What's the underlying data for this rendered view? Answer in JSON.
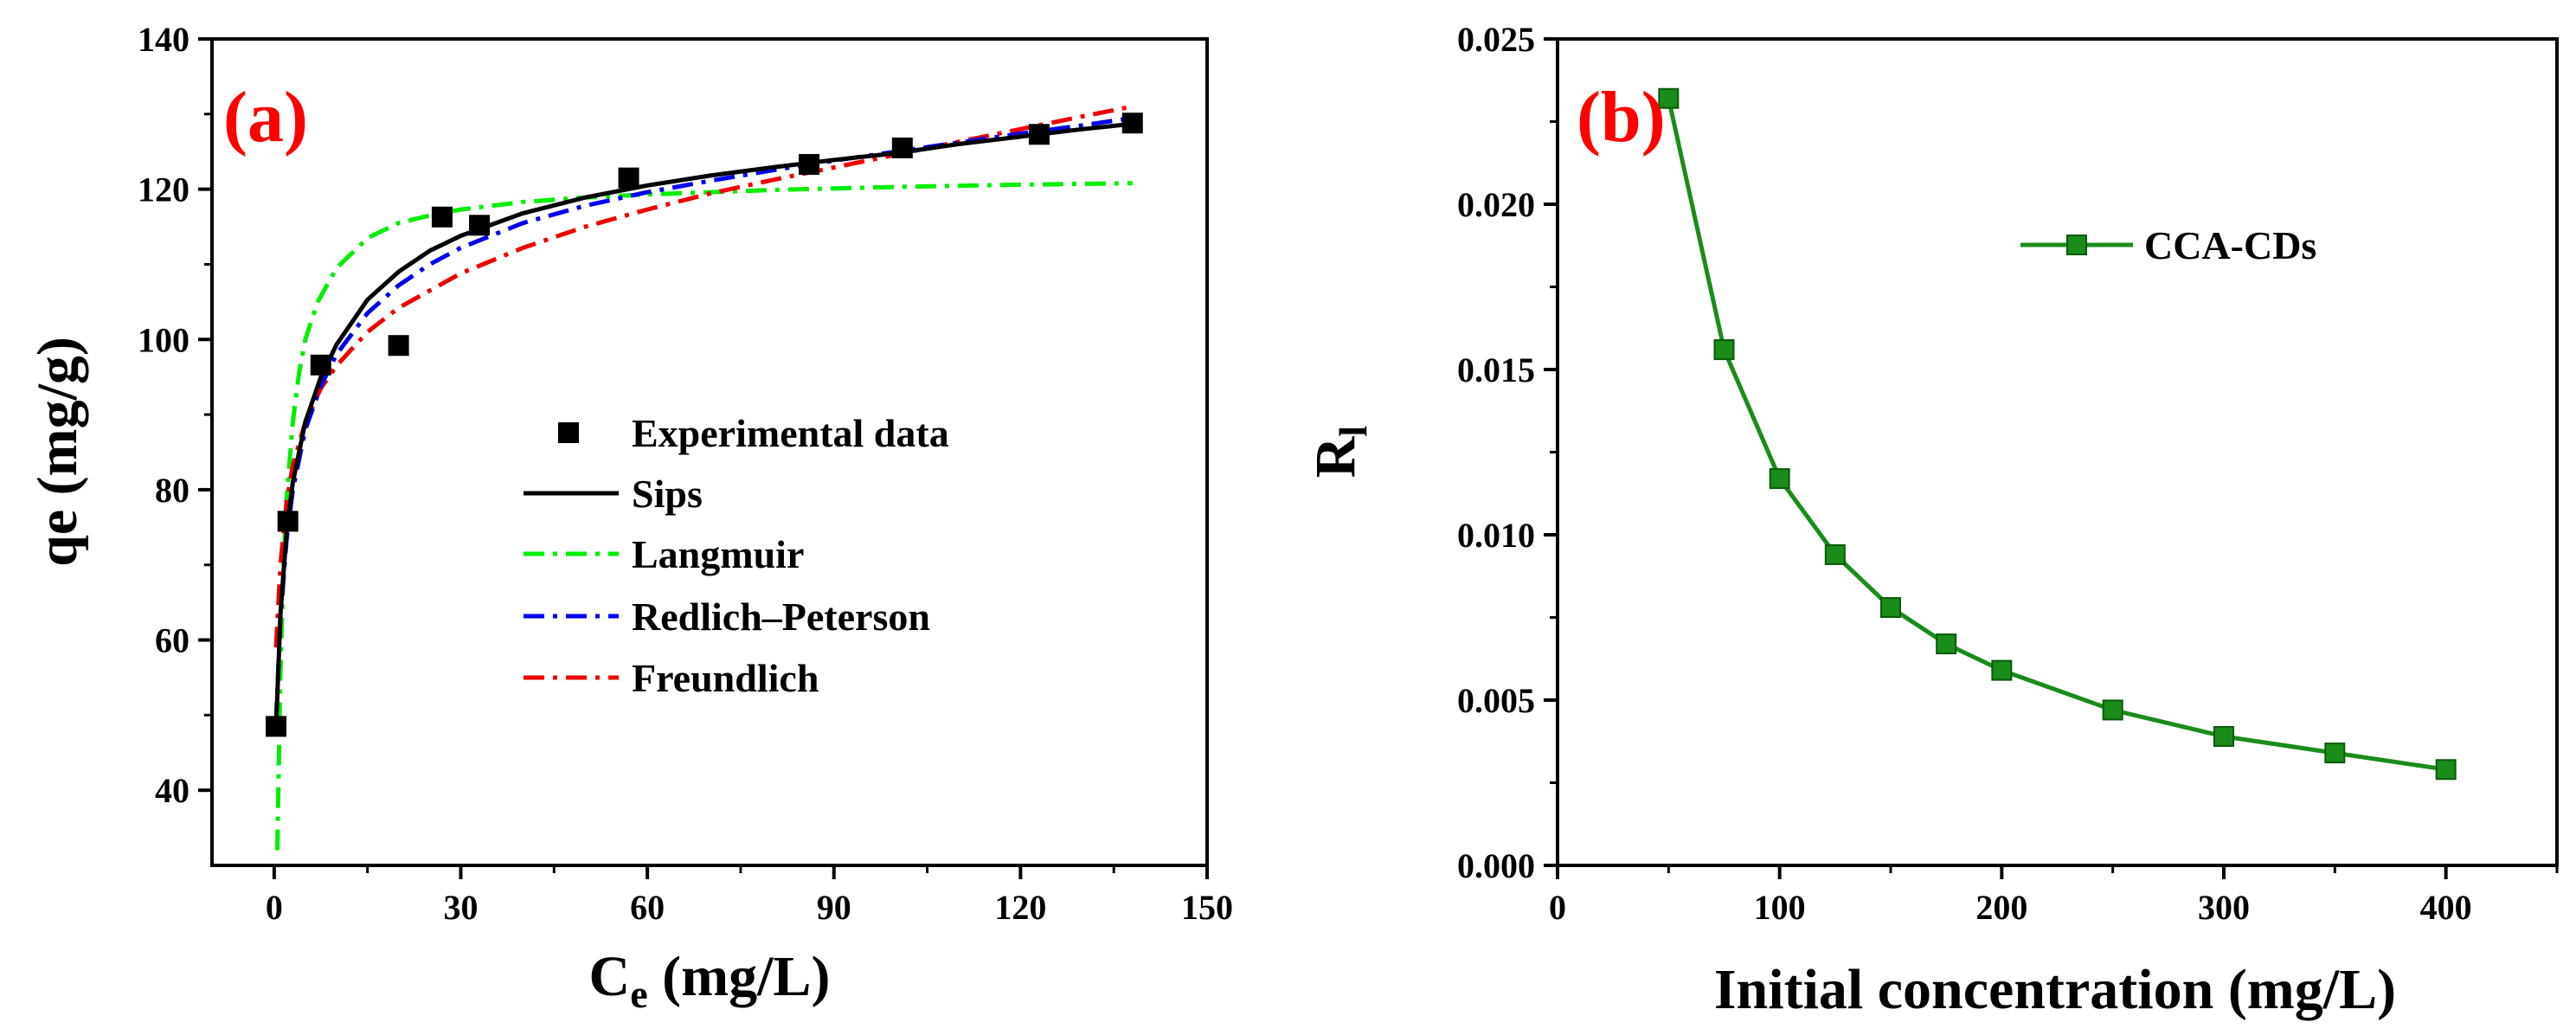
{
  "chart_data": [
    {
      "panel": "a",
      "type": "scatter",
      "panel_label": "(a)",
      "panel_label_color": "#ff0000",
      "xlabel_main": "C",
      "xlabel_sub": "e",
      "xlabel_rest": " (mg/L)",
      "ylabel": "qe (mg/g)",
      "xlim": [
        -10,
        150
      ],
      "ylim": [
        30,
        140
      ],
      "xticks": [
        0,
        30,
        60,
        90,
        120,
        150
      ],
      "yticks": [
        40,
        60,
        80,
        100,
        120,
        140
      ],
      "legend_position": "center",
      "series": [
        {
          "name": "Experimental data",
          "kind": "points",
          "color": "#000000",
          "x": [
            0.3,
            2.2,
            7.5,
            20.0,
            27.0,
            33.0,
            57.0,
            86.0,
            101.0,
            123.0,
            138.0
          ],
          "y": [
            48.5,
            75.8,
            96.6,
            99.2,
            116.3,
            115.2,
            121.5,
            123.3,
            125.5,
            127.3,
            128.8
          ]
        },
        {
          "name": "Sips",
          "kind": "line",
          "color": "#000000",
          "dash": "none",
          "x": [
            0.3,
            1,
            2,
            3,
            5,
            7.5,
            10,
            15,
            20,
            25,
            30,
            40,
            50,
            60,
            70,
            80,
            90,
            100,
            110,
            120,
            130,
            138
          ],
          "y": [
            48.0,
            63.5,
            74.5,
            81.0,
            89.0,
            95.0,
            99.3,
            105.3,
            109.0,
            111.8,
            113.8,
            116.8,
            118.9,
            120.5,
            121.8,
            122.9,
            123.9,
            124.8,
            126.0,
            127.0,
            128.0,
            128.7
          ]
        },
        {
          "name": "Langmuir",
          "kind": "line",
          "color": "#00ee00",
          "dash": "24 10 5 10",
          "x": [
            0.5,
            0.8,
            1,
            1.5,
            2,
            3,
            4,
            5,
            7,
            10,
            15,
            20,
            25,
            30,
            40,
            50,
            60,
            80,
            100,
            120,
            138
          ],
          "y": [
            32.0,
            46.0,
            56.0,
            70.0,
            79.0,
            89.0,
            95.5,
            100.0,
            105.0,
            109.5,
            113.5,
            115.5,
            116.5,
            117.3,
            118.3,
            118.9,
            119.3,
            119.9,
            120.3,
            120.6,
            120.8
          ]
        },
        {
          "name": "Redlich–Peterson",
          "kind": "line",
          "color": "#0000ee",
          "dash": "24 10 5 10",
          "x": [
            0.3,
            1,
            2,
            3,
            5,
            7.5,
            10,
            15,
            20,
            25,
            30,
            40,
            50,
            60,
            70,
            80,
            90,
            100,
            110,
            120,
            130,
            138
          ],
          "y": [
            49.0,
            63.0,
            73.5,
            80.0,
            88.0,
            93.8,
            98.0,
            103.5,
            107.2,
            110.0,
            112.2,
            115.5,
            117.8,
            119.6,
            121.1,
            122.5,
            123.8,
            125.0,
            126.2,
            127.4,
            128.5,
            129.5
          ]
        },
        {
          "name": "Freundlich",
          "kind": "line",
          "color": "#ee0000",
          "dash": "24 10 5 10",
          "x": [
            0.3,
            1,
            2,
            3,
            5,
            7.5,
            10,
            15,
            20,
            30,
            40,
            50,
            60,
            70,
            80,
            90,
            100,
            110,
            120,
            130,
            138
          ],
          "y": [
            59.0,
            70.0,
            78.5,
            83.2,
            89.0,
            93.5,
            96.5,
            101.0,
            104.2,
            108.8,
            112.2,
            115.0,
            117.3,
            119.4,
            121.2,
            122.9,
            124.6,
            126.3,
            128.0,
            129.7,
            131.0
          ]
        }
      ]
    },
    {
      "panel": "b",
      "type": "line",
      "panel_label": "(b)",
      "panel_label_color": "#ff0000",
      "xlabel": "Initial concentration (mg/L)",
      "ylabel_main": "R",
      "ylabel_sub": "l",
      "xlim": [
        0,
        450
      ],
      "ylim": [
        0,
        0.025
      ],
      "xticks": [
        0,
        100,
        200,
        300,
        400
      ],
      "yticks": [
        "0.000",
        "0.005",
        "0.010",
        "0.015",
        "0.020",
        "0.025"
      ],
      "legend_position": "top-right",
      "series": [
        {
          "name": "CCA-CDs",
          "color": "#1a8c1a",
          "x": [
            50,
            75,
            100,
            125,
            150,
            175,
            200,
            250,
            300,
            350,
            400
          ],
          "y": [
            0.0232,
            0.0156,
            0.0117,
            0.0094,
            0.0078,
            0.0067,
            0.0059,
            0.0047,
            0.0039,
            0.0034,
            0.0029
          ]
        }
      ]
    }
  ]
}
